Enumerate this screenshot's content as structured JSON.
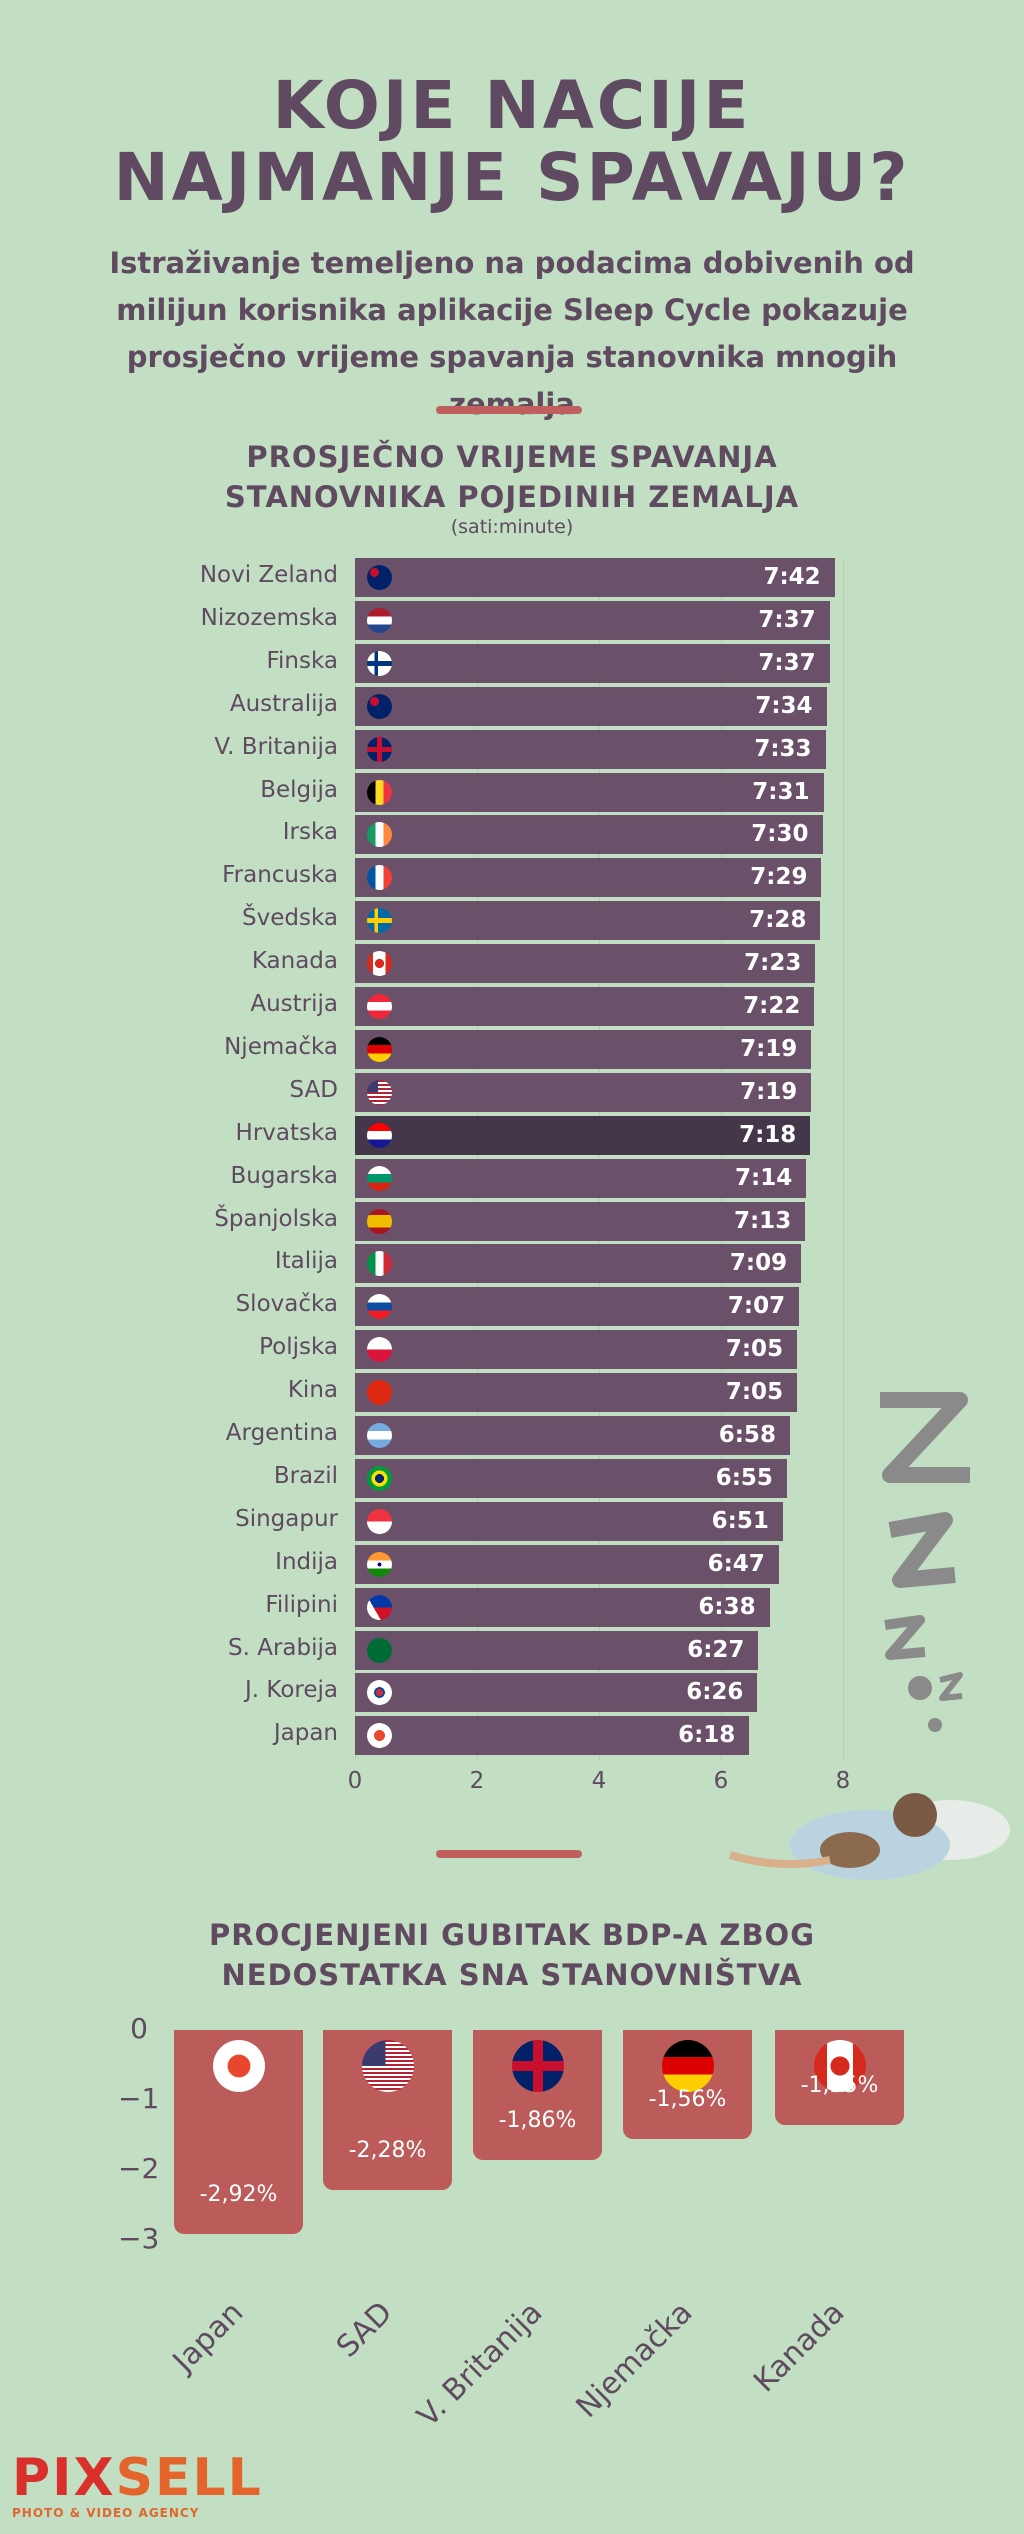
{
  "header": {
    "title_line1": "KOJE NACIJE",
    "title_line2": "NAJMANJE SPAVAJU?",
    "subtitle": "Istraživanje temeljeno na podacima dobivenih od milijun korisnika aplikacije Sleep Cycle pokazuje prosječno vrijeme spavanja stanovnika mnogih zemalja"
  },
  "colors": {
    "background": "#c2dfc4",
    "bar": "#6b5069",
    "highlight": "#45374a",
    "loss_bar": "#bb5c5a",
    "title": "#604a62"
  },
  "chart_data": [
    {
      "type": "bar",
      "orientation": "horizontal",
      "title_line1": "PROSJEČNO VRIJEME SPAVANJA",
      "title_line2": "STANOVNIKA POJEDINIH ZEMALJA",
      "unit": "(sati:minute)",
      "xlim": [
        0,
        8
      ],
      "xticks": [
        "0",
        "2",
        "4",
        "6",
        "8"
      ],
      "grid": true,
      "highlight": "Hrvatska",
      "categories": [
        "Novi Zeland",
        "Nizozemska",
        "Finska",
        "Australija",
        "V. Britanija",
        "Belgija",
        "Irska",
        "Francuska",
        "Švedska",
        "Kanada",
        "Austrija",
        "Njemačka",
        "SAD",
        "Hrvatska",
        "Bugarska",
        "Španjolska",
        "Italija",
        "Slovačka",
        "Poljska",
        "Kina",
        "Argentina",
        "Brazil",
        "Singapur",
        "Indija",
        "Filipini",
        "S. Arabija",
        "J. Koreja",
        "Japan"
      ],
      "labels": [
        "7:42",
        "7:37",
        "7:37",
        "7:34",
        "7:33",
        "7:31",
        "7:30",
        "7:29",
        "7:28",
        "7:23",
        "7:22",
        "7:19",
        "7:19",
        "7:18",
        "7:14",
        "7:13",
        "7:09",
        "7:07",
        "7:05",
        "7:05",
        "6:58",
        "6:55",
        "6:51",
        "6:47",
        "6:38",
        "6:27",
        "6:26",
        "6:18"
      ],
      "flags": [
        "nz",
        "nl",
        "fi",
        "au",
        "gb",
        "be",
        "ie",
        "fr",
        "se",
        "ca",
        "at",
        "de",
        "us",
        "hr",
        "bg",
        "es",
        "it",
        "sk",
        "pl",
        "cn",
        "ar",
        "br",
        "sg",
        "in",
        "ph",
        "sa",
        "kr",
        "jp"
      ]
    },
    {
      "type": "bar",
      "title_line1": "PROCJENJENI GUBITAK BDP-A ZBOG",
      "title_line2": "NEDOSTATKA SNA STANOVNIŠTVA",
      "ylim": [
        -3,
        0
      ],
      "yticks": [
        "0",
        "-1",
        "-2",
        "-3"
      ],
      "categories": [
        "Japan",
        "SAD",
        "V. Britanija",
        "Njemačka",
        "Kanada"
      ],
      "values": [
        -2.92,
        -2.28,
        -1.86,
        -1.56,
        -1.35
      ],
      "labels": [
        "-2,92%",
        "-2,28%",
        "-1,86%",
        "-1,56%",
        "-1,35%"
      ],
      "flags": [
        "jp",
        "us",
        "gb",
        "de",
        "ca"
      ]
    }
  ],
  "logo": {
    "name": "PIXSELL",
    "tagline": "PHOTO & VIDEO AGENCY"
  }
}
